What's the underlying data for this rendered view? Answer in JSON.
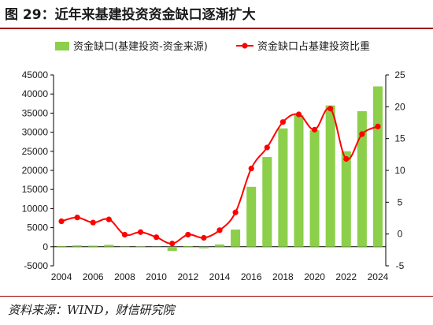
{
  "title": "图 29：近年来基建投资资金缺口逐渐扩大",
  "source": "资料来源：WIND，财信研究院",
  "colors": {
    "bar": "#8ccf4b",
    "line": "#ff0000",
    "rule": "#a00000"
  },
  "chart_data": {
    "type": "bar+line",
    "x": [
      2004,
      2005,
      2006,
      2007,
      2008,
      2009,
      2010,
      2011,
      2012,
      2013,
      2014,
      2015,
      2016,
      2017,
      2018,
      2019,
      2020,
      2021,
      2022,
      2023,
      2024
    ],
    "x_tick_labels": [
      "2004",
      "2006",
      "2008",
      "2010",
      "2012",
      "2014",
      "2016",
      "2018",
      "2020",
      "2022",
      "2024"
    ],
    "series": [
      {
        "name": "资金缺口(基建投资-资金来源)",
        "type": "bar",
        "axis": "left",
        "values": [
          150,
          350,
          280,
          500,
          20,
          50,
          -200,
          -1100,
          150,
          -400,
          600,
          4500,
          15700,
          23500,
          31000,
          34500,
          30500,
          37000,
          25000,
          35500,
          42000
        ]
      },
      {
        "name": "资金缺口占基建投资比重",
        "type": "line",
        "axis": "right",
        "values": [
          2.0,
          2.6,
          1.8,
          2.3,
          -0.1,
          0.3,
          -0.5,
          -1.5,
          -0.1,
          -0.6,
          0.6,
          3.4,
          10.3,
          13.6,
          17.6,
          18.8,
          16.4,
          19.7,
          11.8,
          15.7,
          16.9
        ]
      }
    ],
    "y_left": {
      "min": -5000,
      "max": 45000,
      "ticks": [
        -5000,
        0,
        5000,
        10000,
        15000,
        20000,
        25000,
        30000,
        35000,
        40000,
        45000
      ]
    },
    "y_right": {
      "min": -5,
      "max": 25,
      "ticks": [
        -5,
        0,
        5,
        10,
        15,
        20,
        25
      ]
    },
    "legend_position": "top"
  }
}
